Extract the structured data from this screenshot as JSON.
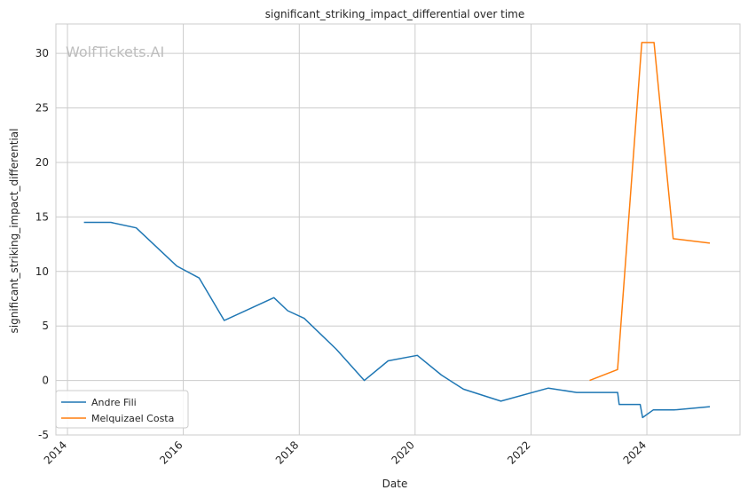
{
  "chart_data": {
    "type": "line",
    "title": "significant_striking_impact_differential over time",
    "xlabel": "Date",
    "ylabel": "significant_striking_impact_differential",
    "watermark": "WolfTickets.AI",
    "xlim": [
      "2013-10-20",
      "2025-08-10"
    ],
    "ylim": [
      -5,
      32.7
    ],
    "x_ticks": [
      "2014",
      "2016",
      "2018",
      "2020",
      "2022",
      "2024"
    ],
    "y_ticks": [
      -5,
      0,
      5,
      10,
      15,
      20,
      25,
      30
    ],
    "grid": true,
    "legend_position": "lower-left",
    "series": [
      {
        "name": "Andre Fili",
        "color": "#1f77b4",
        "points": [
          {
            "x": "2014-04-15",
            "y": 14.5
          },
          {
            "x": "2014-10-01",
            "y": 14.5
          },
          {
            "x": "2015-03-10",
            "y": 14.0
          },
          {
            "x": "2015-11-20",
            "y": 10.5
          },
          {
            "x": "2016-04-10",
            "y": 9.4
          },
          {
            "x": "2016-09-15",
            "y": 5.5
          },
          {
            "x": "2017-07-25",
            "y": 7.6
          },
          {
            "x": "2017-10-20",
            "y": 6.4
          },
          {
            "x": "2018-02-01",
            "y": 5.7
          },
          {
            "x": "2018-08-20",
            "y": 2.9
          },
          {
            "x": "2019-02-15",
            "y": 0.0
          },
          {
            "x": "2019-07-15",
            "y": 1.8
          },
          {
            "x": "2020-01-15",
            "y": 2.3
          },
          {
            "x": "2020-06-15",
            "y": 0.5
          },
          {
            "x": "2020-11-01",
            "y": -0.8
          },
          {
            "x": "2021-06-25",
            "y": -1.9
          },
          {
            "x": "2022-04-20",
            "y": -0.7
          },
          {
            "x": "2022-10-15",
            "y": -1.1
          },
          {
            "x": "2023-07-01",
            "y": -1.1
          },
          {
            "x": "2023-07-10",
            "y": -2.2
          },
          {
            "x": "2023-11-20",
            "y": -2.2
          },
          {
            "x": "2023-12-05",
            "y": -3.4
          },
          {
            "x": "2024-02-10",
            "y": -2.7
          },
          {
            "x": "2024-06-20",
            "y": -2.7
          },
          {
            "x": "2025-02-01",
            "y": -2.4
          }
        ]
      },
      {
        "name": "Melquizael Costa",
        "color": "#ff7f0e",
        "points": [
          {
            "x": "2023-01-05",
            "y": 0.0
          },
          {
            "x": "2023-06-30",
            "y": 1.0
          },
          {
            "x": "2023-11-30",
            "y": 31.0
          },
          {
            "x": "2024-02-15",
            "y": 31.0
          },
          {
            "x": "2024-06-15",
            "y": 13.0
          },
          {
            "x": "2025-02-01",
            "y": 12.6
          }
        ]
      }
    ]
  }
}
